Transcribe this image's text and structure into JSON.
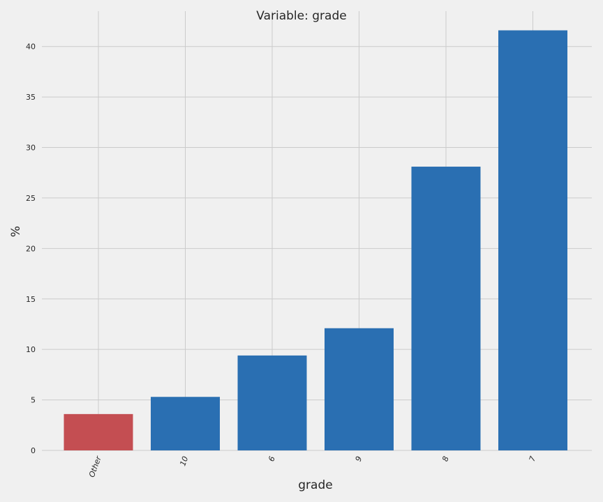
{
  "chart_data": {
    "type": "bar",
    "title": "Variable: grade",
    "xlabel": "grade",
    "ylabel": "%",
    "categories": [
      "Other",
      "10",
      "6",
      "9",
      "8",
      "7"
    ],
    "values": [
      3.6,
      5.3,
      9.4,
      12.1,
      28.1,
      41.6
    ],
    "colors": [
      "#c44e52",
      "#2a6fb2",
      "#2a6fb2",
      "#2a6fb2",
      "#2a6fb2",
      "#2a6fb2"
    ],
    "yticks": [
      "0",
      "5",
      "10",
      "15",
      "20",
      "25",
      "30",
      "35",
      "40"
    ],
    "ylim": [
      0,
      43.5
    ],
    "grid": true,
    "xtick_rotation": -70
  }
}
